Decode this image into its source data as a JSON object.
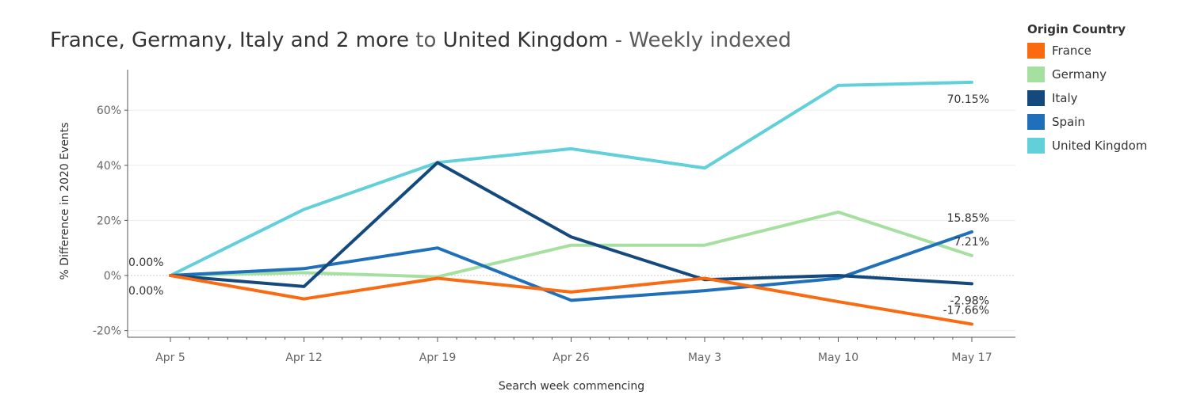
{
  "title": {
    "part1": "France, Germany, Italy and 2 more",
    "part2": "to",
    "part3": "United Kingdom",
    "part4": "- Weekly indexed"
  },
  "legend": {
    "title": "Origin Country",
    "items": [
      {
        "label": "France",
        "color": "#fa6a10"
      },
      {
        "label": "Germany",
        "color": "#a6e0a0"
      },
      {
        "label": "Italy",
        "color": "#14497e"
      },
      {
        "label": "Spain",
        "color": "#1f6fbb"
      },
      {
        "label": "United Kingdom",
        "color": "#62d0d8"
      }
    ]
  },
  "chart_data": {
    "type": "line",
    "xlabel": "Search week commencing",
    "ylabel": "% Difference in 2020 Events",
    "categories": [
      "Apr 5",
      "Apr 12",
      "Apr 19",
      "Apr 26",
      "May 3",
      "May 10",
      "May 17"
    ],
    "ylim": [
      -22,
      78
    ],
    "yticks": [
      -20,
      0,
      20,
      40,
      60
    ],
    "ytick_labels": [
      "-20%",
      "0%",
      "20%",
      "40%",
      "60%"
    ],
    "grid": true,
    "legend_position": "right",
    "series": [
      {
        "name": "France",
        "color": "#fa6a10",
        "values": [
          0,
          -8.5,
          -1,
          -6,
          -1,
          -9.5,
          -17.66
        ]
      },
      {
        "name": "Germany",
        "color": "#a6e0a0",
        "values": [
          0,
          1,
          -0.5,
          11,
          11,
          23,
          7.21
        ]
      },
      {
        "name": "Italy",
        "color": "#14497e",
        "values": [
          0,
          -4,
          41,
          14,
          -1.5,
          0,
          -2.98
        ]
      },
      {
        "name": "Spain",
        "color": "#1f6fbb",
        "values": [
          0,
          2.5,
          10,
          -9,
          -5.5,
          -1,
          15.85
        ]
      },
      {
        "name": "United Kingdom",
        "color": "#62d0d8",
        "values": [
          0,
          24,
          41,
          46,
          39,
          69,
          70.15
        ]
      }
    ],
    "annotations": [
      {
        "text": "0.00%",
        "series": "Italy",
        "point": 0,
        "side": "above"
      },
      {
        "text": "0.00%",
        "series": "France",
        "point": 0,
        "side": "below"
      },
      {
        "text": "70.15%",
        "series": "United Kingdom",
        "point": 6,
        "side": "below"
      },
      {
        "text": "15.85%",
        "series": "Spain",
        "point": 6,
        "side": "above"
      },
      {
        "text": "7.21%",
        "series": "Germany",
        "point": 6,
        "side": "above"
      },
      {
        "text": "-2.98%",
        "series": "Italy",
        "point": 6,
        "side": "below"
      },
      {
        "text": "-17.66%",
        "series": "France",
        "point": 6,
        "side": "above"
      }
    ]
  }
}
